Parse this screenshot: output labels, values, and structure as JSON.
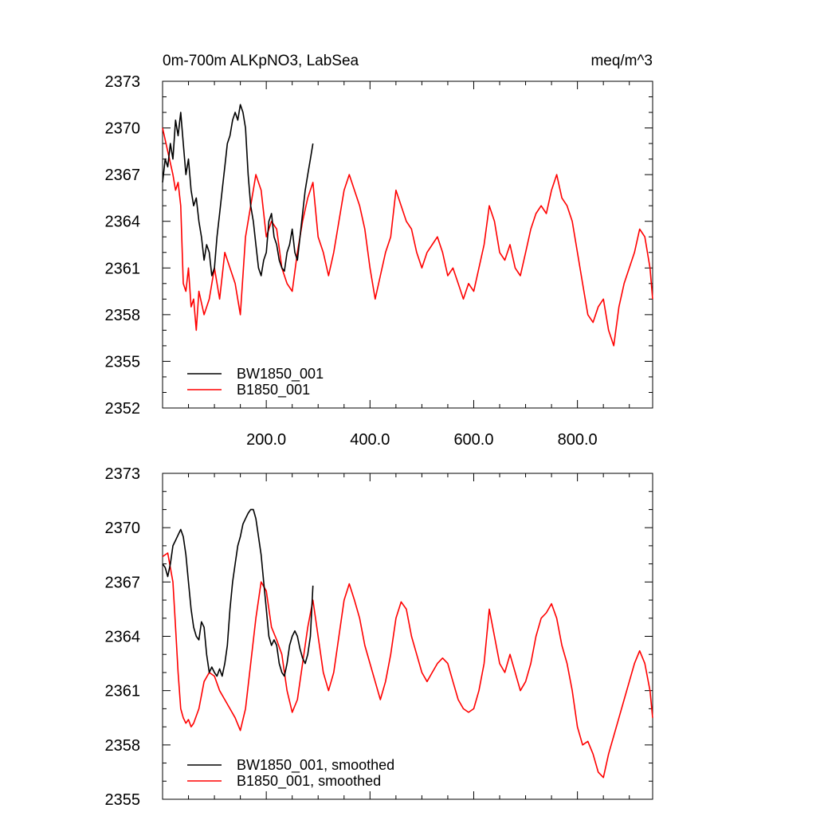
{
  "colors": {
    "black_series": "#000000",
    "red_series": "#ff0000",
    "axis": "#000000",
    "background": "#ffffff"
  },
  "chart_data": [
    {
      "type": "line",
      "title_left": "0m-700m ALKpNO3, LabSea",
      "title_right": "meq/m^3",
      "xlabel": "",
      "ylabel": "",
      "xlim": [
        0,
        945
      ],
      "ylim": [
        2352,
        2373
      ],
      "yticks": [
        2352,
        2355,
        2358,
        2361,
        2364,
        2367,
        2370,
        2373
      ],
      "xticks": [
        200,
        400,
        600,
        800
      ],
      "xtick_labels": [
        "200.0",
        "400.0",
        "600.0",
        "800.0"
      ],
      "grid": false,
      "legend_position": "bottom-left",
      "series": [
        {
          "name": "BW1850_001",
          "color": "#000000",
          "x": [
            0,
            5,
            10,
            15,
            20,
            25,
            30,
            35,
            40,
            45,
            50,
            55,
            60,
            65,
            70,
            75,
            80,
            85,
            90,
            95,
            100,
            105,
            110,
            115,
            120,
            125,
            130,
            135,
            140,
            145,
            150,
            155,
            160,
            165,
            170,
            175,
            180,
            185,
            190,
            195,
            200,
            205,
            210,
            215,
            220,
            225,
            230,
            235,
            240,
            245,
            250,
            255,
            260,
            265,
            270,
            275,
            280,
            285,
            290
          ],
          "values": [
            2366.5,
            2368.0,
            2367.5,
            2369.0,
            2368.0,
            2370.5,
            2369.5,
            2371.0,
            2369.0,
            2367.0,
            2368.0,
            2366.0,
            2365.0,
            2365.5,
            2364.0,
            2363.0,
            2361.5,
            2362.5,
            2362.0,
            2360.5,
            2361.0,
            2363.0,
            2364.5,
            2366.0,
            2367.5,
            2369.0,
            2369.5,
            2370.5,
            2371.0,
            2370.5,
            2371.5,
            2371.0,
            2370.0,
            2367.0,
            2365.0,
            2364.0,
            2362.5,
            2361.0,
            2360.5,
            2361.5,
            2362.0,
            2364.0,
            2364.5,
            2363.0,
            2362.5,
            2361.5,
            2361.0,
            2360.8,
            2362.0,
            2362.5,
            2363.5,
            2362.0,
            2361.5,
            2363.0,
            2364.5,
            2366.0,
            2367.0,
            2368.0,
            2369.0
          ]
        },
        {
          "name": "B1850_001",
          "color": "#ff0000",
          "x": [
            0,
            10,
            20,
            25,
            30,
            35,
            40,
            45,
            50,
            55,
            60,
            65,
            70,
            80,
            90,
            100,
            110,
            120,
            130,
            140,
            150,
            160,
            170,
            180,
            190,
            200,
            210,
            220,
            230,
            240,
            250,
            260,
            270,
            280,
            290,
            300,
            310,
            320,
            330,
            340,
            350,
            360,
            370,
            380,
            390,
            400,
            410,
            420,
            430,
            440,
            450,
            460,
            470,
            480,
            490,
            500,
            510,
            520,
            530,
            540,
            550,
            560,
            570,
            580,
            590,
            600,
            610,
            620,
            630,
            640,
            650,
            660,
            670,
            680,
            690,
            700,
            710,
            720,
            730,
            740,
            750,
            760,
            770,
            780,
            790,
            800,
            810,
            820,
            830,
            840,
            850,
            860,
            870,
            880,
            890,
            900,
            910,
            920,
            930,
            940,
            945
          ],
          "values": [
            2370.0,
            2368.5,
            2367.0,
            2366.0,
            2366.5,
            2365.0,
            2360.0,
            2359.5,
            2361.0,
            2358.5,
            2359.0,
            2357.0,
            2359.5,
            2358.0,
            2359.0,
            2361.0,
            2359.0,
            2362.0,
            2361.0,
            2360.0,
            2358.0,
            2363.0,
            2365.0,
            2367.0,
            2366.0,
            2363.0,
            2364.0,
            2363.5,
            2361.0,
            2360.0,
            2359.5,
            2362.0,
            2364.0,
            2365.5,
            2366.5,
            2363.0,
            2362.0,
            2360.5,
            2362.0,
            2364.0,
            2366.0,
            2367.0,
            2366.0,
            2365.0,
            2363.5,
            2361.0,
            2359.0,
            2360.5,
            2362.0,
            2363.0,
            2366.0,
            2365.0,
            2364.0,
            2363.5,
            2362.0,
            2361.0,
            2362.0,
            2362.5,
            2363.0,
            2362.0,
            2360.5,
            2361.0,
            2360.0,
            2359.0,
            2360.0,
            2359.5,
            2361.0,
            2362.5,
            2365.0,
            2364.0,
            2362.0,
            2361.5,
            2362.5,
            2361.0,
            2360.5,
            2362.0,
            2363.5,
            2364.5,
            2365.0,
            2364.5,
            2366.0,
            2367.0,
            2365.5,
            2365.0,
            2364.0,
            2362.0,
            2360.0,
            2358.0,
            2357.5,
            2358.5,
            2359.0,
            2357.0,
            2356.0,
            2358.5,
            2360.0,
            2361.0,
            2362.0,
            2363.5,
            2363.0,
            2361.0,
            2359.0
          ]
        }
      ]
    },
    {
      "type": "line",
      "title_left": "",
      "title_right": "",
      "xlabel": "",
      "ylabel": "",
      "xlim": [
        0,
        945
      ],
      "ylim": [
        2355,
        2373
      ],
      "yticks": [
        2355,
        2358,
        2361,
        2364,
        2367,
        2370,
        2373
      ],
      "xticks": [
        200,
        400,
        600,
        800
      ],
      "xtick_labels": [],
      "grid": false,
      "legend_position": "bottom-left",
      "series": [
        {
          "name": "BW1850_001, smoothed",
          "color": "#000000",
          "x": [
            0,
            5,
            10,
            15,
            20,
            25,
            30,
            35,
            40,
            45,
            50,
            55,
            60,
            65,
            70,
            75,
            80,
            85,
            90,
            95,
            100,
            105,
            110,
            115,
            120,
            125,
            130,
            135,
            140,
            145,
            150,
            155,
            160,
            165,
            170,
            175,
            180,
            185,
            190,
            195,
            200,
            205,
            210,
            215,
            220,
            225,
            230,
            235,
            240,
            245,
            250,
            255,
            260,
            265,
            270,
            275,
            280,
            285,
            290
          ],
          "values": [
            2368.0,
            2367.8,
            2367.3,
            2368.0,
            2369.0,
            2369.3,
            2369.6,
            2369.9,
            2369.5,
            2368.5,
            2367.0,
            2365.5,
            2364.5,
            2364.0,
            2363.8,
            2364.8,
            2364.5,
            2363.0,
            2362.0,
            2362.3,
            2362.0,
            2361.8,
            2362.2,
            2361.8,
            2362.5,
            2363.5,
            2365.5,
            2367.0,
            2368.0,
            2369.0,
            2369.5,
            2370.2,
            2370.5,
            2370.8,
            2371.0,
            2371.0,
            2370.5,
            2369.5,
            2368.5,
            2367.0,
            2365.5,
            2364.0,
            2363.5,
            2363.8,
            2363.5,
            2362.5,
            2362.0,
            2361.8,
            2362.5,
            2363.5,
            2364.0,
            2364.3,
            2364.0,
            2363.3,
            2362.8,
            2362.5,
            2363.0,
            2364.0,
            2366.8
          ]
        },
        {
          "name": "B1850_001, smoothed",
          "color": "#ff0000",
          "x": [
            0,
            10,
            20,
            25,
            30,
            35,
            40,
            45,
            50,
            55,
            60,
            65,
            70,
            80,
            90,
            100,
            110,
            120,
            130,
            140,
            150,
            160,
            170,
            180,
            190,
            200,
            210,
            220,
            230,
            240,
            250,
            260,
            270,
            280,
            290,
            300,
            310,
            320,
            330,
            340,
            350,
            360,
            370,
            380,
            390,
            400,
            410,
            420,
            430,
            440,
            450,
            460,
            470,
            480,
            490,
            500,
            510,
            520,
            530,
            540,
            550,
            560,
            570,
            580,
            590,
            600,
            610,
            620,
            630,
            640,
            650,
            660,
            670,
            680,
            690,
            700,
            710,
            720,
            730,
            740,
            750,
            760,
            770,
            780,
            790,
            800,
            810,
            820,
            830,
            840,
            850,
            860,
            870,
            880,
            890,
            900,
            910,
            920,
            930,
            940,
            945
          ],
          "values": [
            2368.4,
            2368.6,
            2367.0,
            2364.5,
            2362.0,
            2360.0,
            2359.5,
            2359.2,
            2359.4,
            2359.0,
            2359.2,
            2359.6,
            2360.0,
            2361.5,
            2362.0,
            2361.8,
            2361.0,
            2360.5,
            2360.0,
            2359.5,
            2358.8,
            2360.0,
            2362.5,
            2365.0,
            2367.0,
            2366.5,
            2364.5,
            2363.8,
            2363.0,
            2361.0,
            2359.8,
            2360.5,
            2362.5,
            2364.5,
            2366.0,
            2364.0,
            2362.0,
            2361.0,
            2362.0,
            2364.0,
            2366.0,
            2366.9,
            2366.0,
            2365.0,
            2363.5,
            2362.5,
            2361.5,
            2360.5,
            2361.5,
            2363.0,
            2365.0,
            2365.9,
            2365.5,
            2364.0,
            2363.0,
            2362.0,
            2361.5,
            2362.0,
            2362.5,
            2362.8,
            2362.5,
            2361.5,
            2360.5,
            2360.0,
            2359.8,
            2360.0,
            2361.0,
            2362.5,
            2365.5,
            2364.0,
            2362.5,
            2362.0,
            2363.0,
            2362.0,
            2361.0,
            2361.5,
            2362.5,
            2364.0,
            2365.0,
            2365.3,
            2365.8,
            2365.0,
            2363.5,
            2362.5,
            2361.0,
            2359.0,
            2358.0,
            2358.2,
            2357.5,
            2356.5,
            2356.2,
            2357.5,
            2358.5,
            2359.5,
            2360.5,
            2361.5,
            2362.5,
            2363.2,
            2362.5,
            2361.0,
            2359.5
          ]
        }
      ]
    }
  ]
}
